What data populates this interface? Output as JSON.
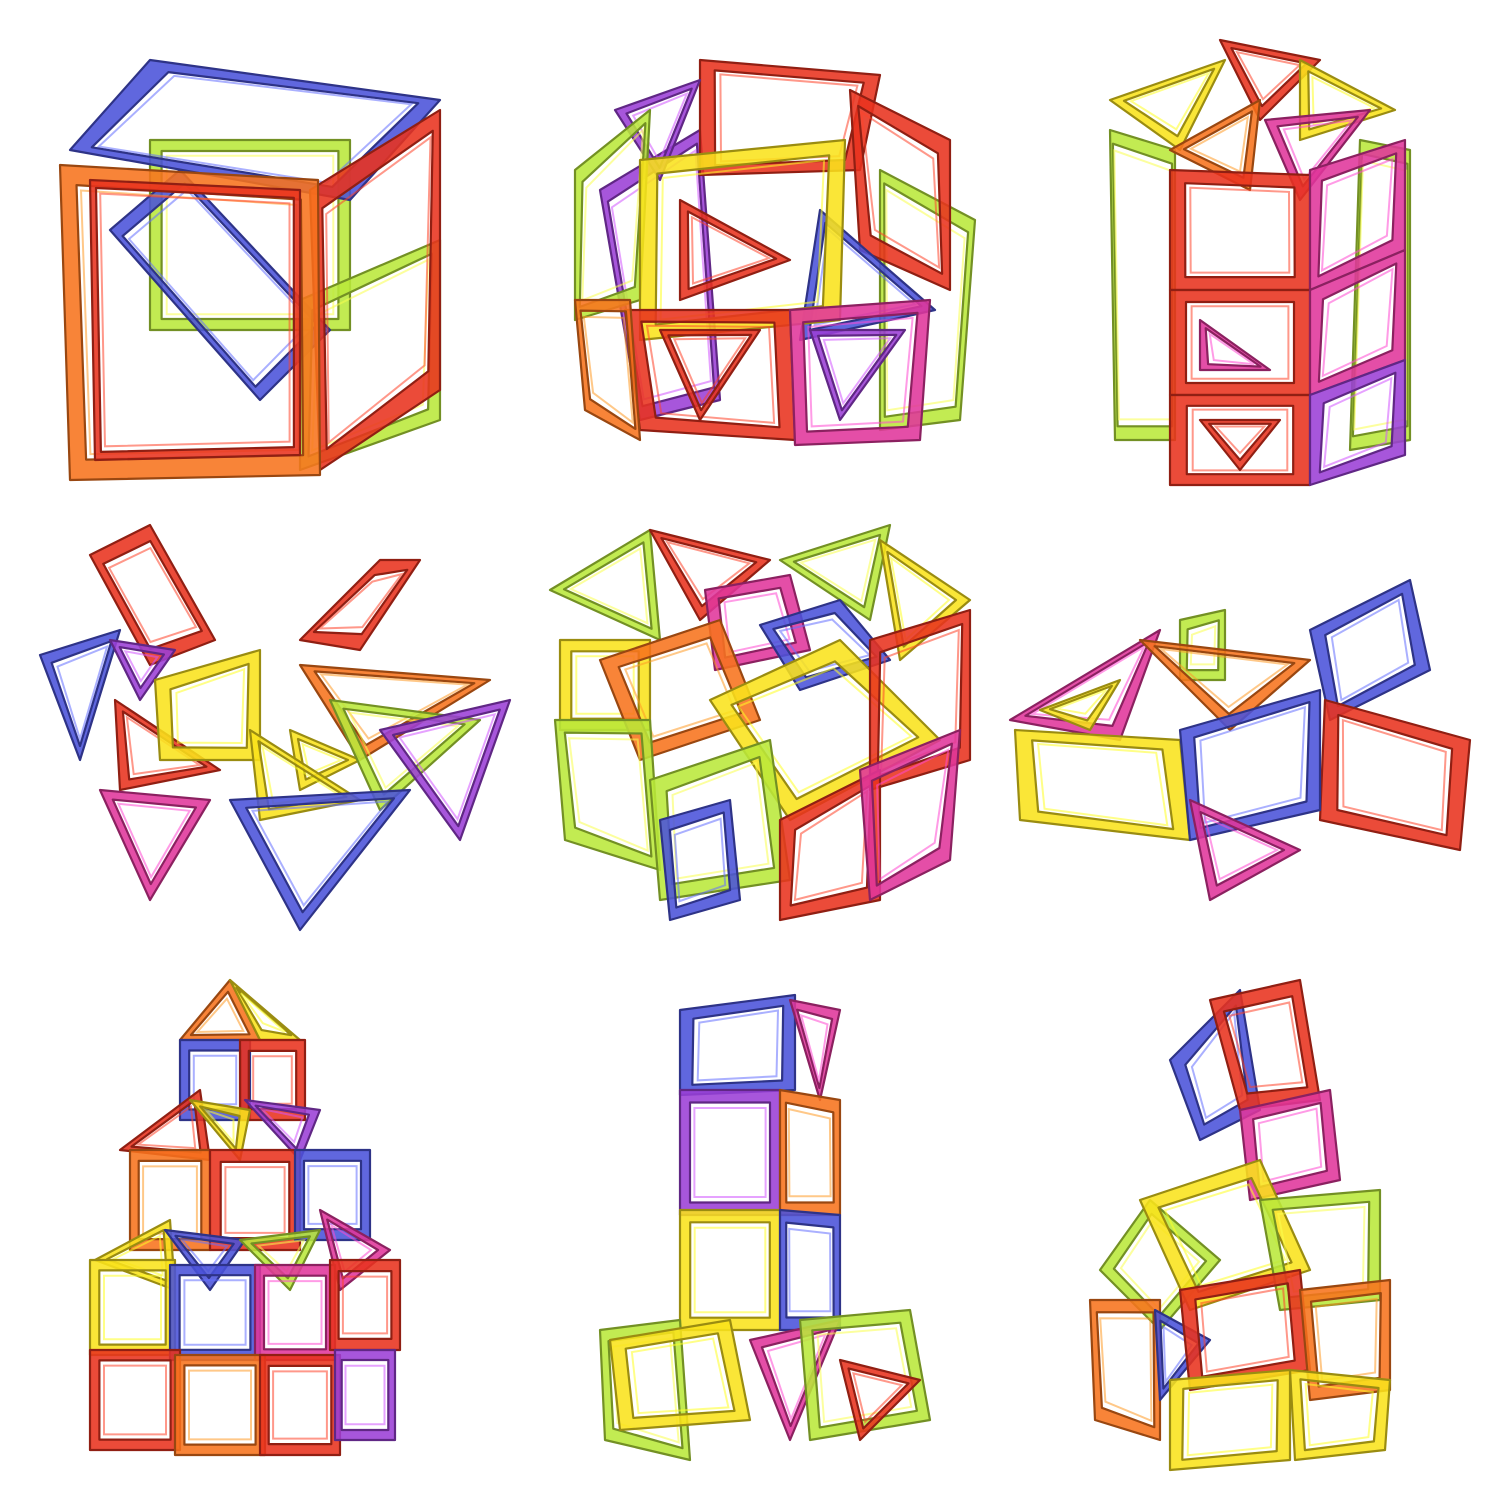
{
  "palette": {
    "red": "#E8321E",
    "orange": "#F7731C",
    "yellow": "#F9E21B",
    "lime": "#B9E83A",
    "blue": "#4A52D9",
    "purple": "#9B3FD6",
    "magenta": "#E0359B",
    "background": "#FFFFFF"
  },
  "models": [
    {
      "id": "cube-model"
    },
    {
      "id": "rhombicuboctahedron-model"
    },
    {
      "id": "tower-prism-model"
    },
    {
      "id": "open-wings-model"
    },
    {
      "id": "heart-model"
    },
    {
      "id": "fish-model"
    },
    {
      "id": "stacked-castle-model"
    },
    {
      "id": "rocket-tower-model"
    },
    {
      "id": "leaning-house-model"
    }
  ]
}
